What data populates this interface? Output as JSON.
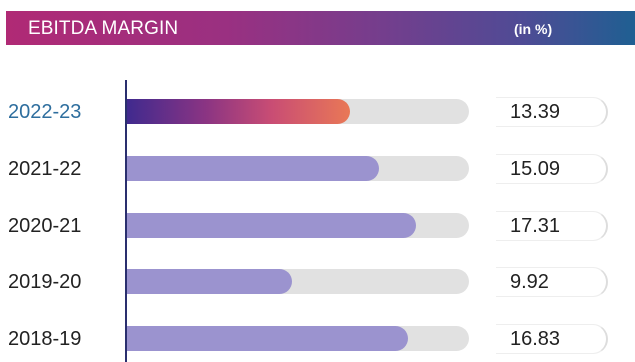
{
  "header": {
    "title": "EBITDA MARGIN",
    "unit": "(in %)",
    "gradient_colors": [
      "#b02a75",
      "#743e8d",
      "#1f5f92"
    ]
  },
  "chart_data": {
    "type": "bar",
    "orientation": "horizontal",
    "title": "EBITDA MARGIN",
    "unit_label": "(in %)",
    "categories": [
      "2022-23",
      "2021-22",
      "2020-21",
      "2019-20",
      "2018-19"
    ],
    "values": [
      13.39,
      15.09,
      17.31,
      9.92,
      16.83
    ],
    "value_labels": [
      "13.39",
      "15.09",
      "17.31",
      "9.92",
      "16.83"
    ],
    "xlim": [
      0,
      20.5
    ],
    "grid": false,
    "highlight_category": "2022-23",
    "colors": {
      "bar": "#9b93cf",
      "track": "#e1e1e1",
      "highlight_gradient": [
        "#402a8e",
        "#8a3483",
        "#c94d74",
        "#e97856"
      ],
      "highlight_label": "#2e6e9e",
      "axis": "#2a2f6e"
    }
  }
}
